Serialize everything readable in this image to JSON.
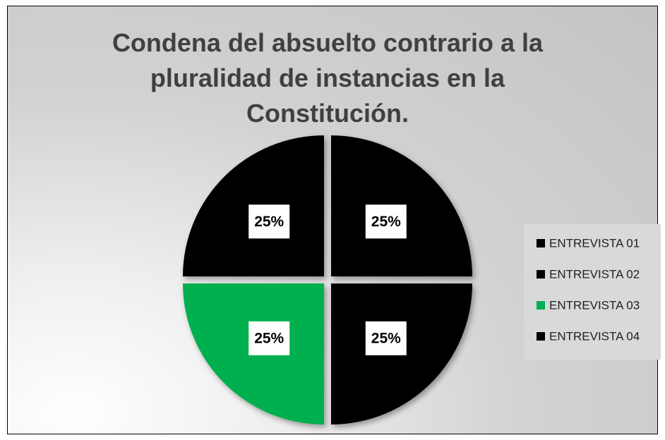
{
  "chart_data": {
    "type": "pie",
    "title": "Condena del absuelto contrario a la pluralidad de instancias en la Constitución.",
    "categories": [
      "ENTREVISTA 01",
      "ENTREVISTA 02",
      "ENTREVISTA 03",
      "ENTREVISTA 04"
    ],
    "values": [
      25,
      25,
      25,
      25
    ],
    "value_labels": [
      "25%",
      "25%",
      "25%",
      "25%"
    ],
    "colors": [
      "#000000",
      "#000000",
      "#00b050",
      "#000000"
    ],
    "legend": "right"
  }
}
